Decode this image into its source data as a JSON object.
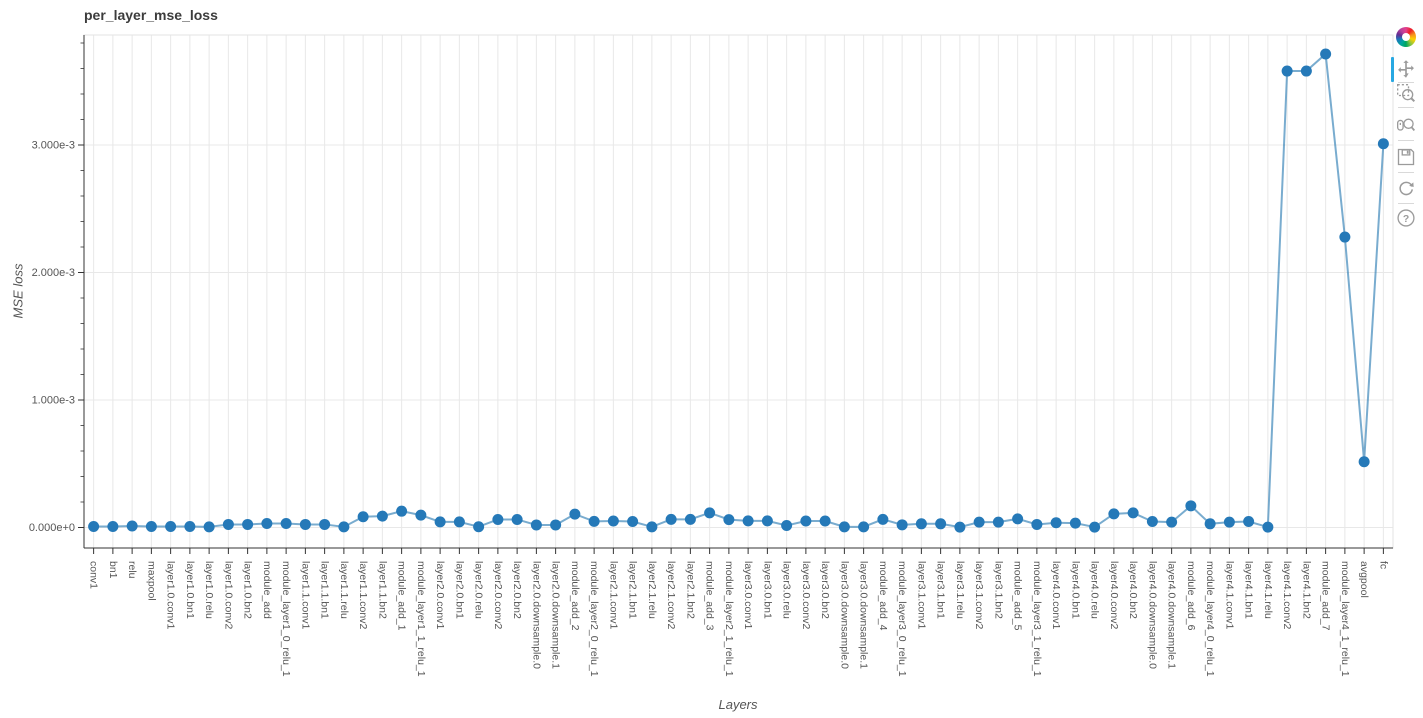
{
  "chart_data": {
    "type": "line",
    "title": "per_layer_mse_loss",
    "xlabel": "Layers",
    "ylabel": "MSE loss",
    "legend": "none",
    "grid": "on",
    "marker": "circle",
    "categories": [
      "conv1",
      "bn1",
      "relu",
      "maxpool",
      "layer1.0.conv1",
      "layer1.0.bn1",
      "layer1.0.relu",
      "layer1.0.conv2",
      "layer1.0.bn2",
      "module_add",
      "module_layer1_0_relu_1",
      "layer1.1.conv1",
      "layer1.1.bn1",
      "layer1.1.relu",
      "layer1.1.conv2",
      "layer1.1.bn2",
      "module_add_1",
      "module_layer1_1_relu_1",
      "layer2.0.conv1",
      "layer2.0.bn1",
      "layer2.0.relu",
      "layer2.0.conv2",
      "layer2.0.bn2",
      "layer2.0.downsample.0",
      "layer2.0.downsample.1",
      "module_add_2",
      "module_layer2_0_relu_1",
      "layer2.1.conv1",
      "layer2.1.bn1",
      "layer2.1.relu",
      "layer2.1.conv2",
      "layer2.1.bn2",
      "module_add_3",
      "module_layer2_1_relu_1",
      "layer3.0.conv1",
      "layer3.0.bn1",
      "layer3.0.relu",
      "layer3.0.conv2",
      "layer3.0.bn2",
      "layer3.0.downsample.0",
      "layer3.0.downsample.1",
      "module_add_4",
      "module_layer3_0_relu_1",
      "layer3.1.conv1",
      "layer3.1.bn1",
      "layer3.1.relu",
      "layer3.1.conv2",
      "layer3.1.bn2",
      "module_add_5",
      "module_layer3_1_relu_1",
      "layer4.0.conv1",
      "layer4.0.bn1",
      "layer4.0.relu",
      "layer4.0.conv2",
      "layer4.0.bn2",
      "layer4.0.downsample.0",
      "layer4.0.downsample.1",
      "module_add_6",
      "module_layer4_0_relu_1",
      "layer4.1.conv1",
      "layer4.1.bn1",
      "layer4.1.relu",
      "layer4.1.conv2",
      "layer4.1.bn2",
      "module_add_7",
      "module_layer4_1_relu_1",
      "avgpool",
      "fc"
    ],
    "values": [
      8e-06,
      8e-06,
      1.2e-05,
      8e-06,
      8e-06,
      8e-06,
      5e-06,
      2.4e-05,
      2.4e-05,
      3.1e-05,
      3.1e-05,
      2.4e-05,
      2.4e-05,
      5e-06,
      8.4e-05,
      8.9e-05,
      0.000128,
      9.7e-05,
      4.4e-05,
      4.4e-05,
      6e-06,
      6.3e-05,
      6.3e-05,
      2e-05,
      2e-05,
      0.000105,
      4.8e-05,
      5.1e-05,
      4.7e-05,
      5e-06,
      6.4e-05,
      6.4e-05,
      0.000115,
      6.2e-05,
      5.2e-05,
      5.2e-05,
      1.6e-05,
      5.1e-05,
      5.1e-05,
      5e-06,
      5e-06,
      6.4e-05,
      2.1e-05,
      2.9e-05,
      2.9e-05,
      3e-06,
      4.2e-05,
      4.2e-05,
      6.8e-05,
      2.4e-05,
      3.7e-05,
      3.4e-05,
      3e-06,
      0.000107,
      0.000115,
      4.7e-05,
      4.2e-05,
      0.00017,
      2.9e-05,
      4.2e-05,
      4.7e-05,
      3e-06,
      0.00358,
      0.00358,
      0.003714,
      0.002278,
      0.000516,
      0.00301
    ],
    "y_ticks": [
      {
        "value": 0,
        "label": "0.000e+0"
      },
      {
        "value": 0.001,
        "label": "1.000e-3"
      },
      {
        "value": 0.002,
        "label": "2.000e-3"
      },
      {
        "value": 0.003,
        "label": "3.000e-3"
      }
    ],
    "y_minor_step": 0.0002,
    "ylim": [
      -0.00016,
      0.00386
    ],
    "colors": {
      "marker": "#2579b8",
      "line": "rgba(38,121,178,0.62)",
      "grid": "#e8e8e8",
      "outline": "#e3e3e3",
      "axis": "#333333",
      "tick_label": "#555555",
      "title": "#3c3c3c"
    }
  },
  "toolbar": {
    "active_tool": "pan",
    "active_indicator_color": "#28a8e2",
    "icon_color": "#9b9b9b",
    "tools": [
      {
        "name": "bokeh-logo"
      },
      {
        "name": "pan"
      },
      {
        "name": "box-zoom"
      },
      {
        "name": "wheel-zoom"
      },
      {
        "name": "save"
      },
      {
        "name": "reset"
      },
      {
        "name": "help"
      }
    ]
  }
}
